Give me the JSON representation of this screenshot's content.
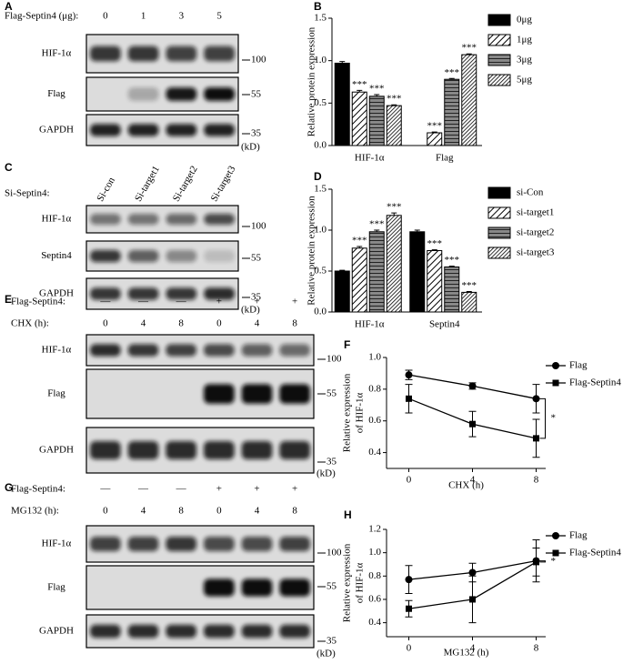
{
  "panels": [
    "A",
    "B",
    "C",
    "D",
    "E",
    "F",
    "G",
    "H"
  ],
  "blots": [
    {
      "headers": [
        {
          "label": "Flag-Septin4 (μg):",
          "lanes": [
            "0",
            "1",
            "3",
            "5"
          ]
        }
      ],
      "rows": [
        "HIF-1α",
        "Flag",
        "GAPDH"
      ],
      "markers": [
        "100",
        "55",
        "35"
      ],
      "unit": "(kD)"
    },
    {
      "headers": [
        {
          "label": "Si-Septin4:",
          "lanes": [
            "Si-con",
            "Si-target1",
            "Si-target2",
            "Si-target3"
          ]
        }
      ],
      "rows": [
        "HIF-1α",
        "Septin4",
        "GAPDH"
      ],
      "markers": [
        "100",
        "55",
        "35"
      ],
      "unit": "(kD)"
    },
    {
      "headers": [
        {
          "label": "Flag-Septin4:",
          "lanes": [
            "—",
            "—",
            "—",
            "+",
            "+",
            "+"
          ]
        },
        {
          "label": "CHX (h):",
          "lanes": [
            "0",
            "4",
            "8",
            "0",
            "4",
            "8"
          ]
        }
      ],
      "rows": [
        "HIF-1α",
        "Flag",
        "GAPDH"
      ],
      "markers": [
        "100",
        "55",
        "35"
      ],
      "unit": "(kD)"
    },
    {
      "headers": [
        {
          "label": "Flag-Septin4:",
          "lanes": [
            "—",
            "—",
            "—",
            "+",
            "+",
            "+"
          ]
        },
        {
          "label": "MG132 (h):",
          "lanes": [
            "0",
            "4",
            "8",
            "0",
            "4",
            "8"
          ]
        }
      ],
      "rows": [
        "HIF-1α",
        "Flag",
        "GAPDH"
      ],
      "markers": [
        "100",
        "55",
        "35"
      ],
      "unit": "(kD)"
    }
  ],
  "chart_data": [
    {
      "type": "bar",
      "y_label": "Relative protein expression",
      "categories": [
        "HIF-1α",
        "Flag"
      ],
      "series": [
        {
          "name": "0μg",
          "color": "#000000",
          "pattern": "solid",
          "values": [
            0.97,
            0
          ],
          "errors": [
            0.02,
            0
          ],
          "significance": [
            null,
            null
          ]
        },
        {
          "name": "1μg",
          "color": "#000000",
          "pattern": "diagonal",
          "values": [
            0.63,
            0.15
          ],
          "errors": [
            0.02,
            0.01
          ],
          "significance": [
            "***",
            "***"
          ]
        },
        {
          "name": "3μg",
          "color": "#000000",
          "pattern": "horizontal",
          "values": [
            0.58,
            0.78
          ],
          "errors": [
            0.02,
            0.01
          ],
          "significance": [
            "***",
            "***"
          ]
        },
        {
          "name": "5μg",
          "color": "#000000",
          "pattern": "dense-diagonal",
          "values": [
            0.47,
            1.07
          ],
          "errors": [
            0.01,
            0.01
          ],
          "significance": [
            "***",
            "***"
          ]
        }
      ],
      "ylim": [
        0,
        1.5
      ],
      "yticks": [
        {
          "value": 0,
          "label": "0.0"
        },
        0.5,
        {
          "value": 1,
          "label": "1.0"
        },
        1.5
      ],
      "legend": "right"
    },
    {
      "type": "bar",
      "y_label": "Relative protein expression",
      "categories": [
        "HIF-1α",
        "Septin4"
      ],
      "series": [
        {
          "name": "si-Con",
          "color": "#000000",
          "pattern": "solid",
          "values": [
            0.5,
            0.98
          ],
          "errors": [
            0.01,
            0.02
          ],
          "significance": [
            null,
            null
          ]
        },
        {
          "name": "si-target1",
          "color": "#000000",
          "pattern": "diagonal",
          "values": [
            0.78,
            0.75
          ],
          "errors": [
            0.02,
            0.01
          ],
          "significance": [
            "***",
            "***"
          ]
        },
        {
          "name": "si-target2",
          "color": "#000000",
          "pattern": "horizontal",
          "values": [
            0.98,
            0.55
          ],
          "errors": [
            0.02,
            0.01
          ],
          "significance": [
            "***",
            "***"
          ]
        },
        {
          "name": "si-target3",
          "color": "#000000",
          "pattern": "dense-diagonal",
          "values": [
            1.18,
            0.24
          ],
          "errors": [
            0.03,
            0.01
          ],
          "significance": [
            "***",
            "***"
          ]
        }
      ],
      "ylim": [
        0,
        1.5
      ],
      "yticks": [
        {
          "value": 0,
          "label": "0.0"
        },
        0.5,
        {
          "value": 1,
          "label": "1.0"
        },
        1.5
      ],
      "legend": "right"
    },
    {
      "type": "line",
      "x_label": "CHX (h)",
      "y_label": [
        "Relative expression",
        "of HIF-1α"
      ],
      "x": [
        0,
        4,
        8
      ],
      "series": [
        {
          "name": "Flag",
          "color": "#000000",
          "marker": "circle",
          "values": [
            0.89,
            0.82,
            0.74
          ],
          "errors": [
            0.03,
            0.02,
            0.09
          ]
        },
        {
          "name": "Flag-Septin4",
          "color": "#000000",
          "marker": "square",
          "values": [
            0.74,
            0.58,
            0.49
          ],
          "errors": [
            0.09,
            0.08,
            0.12
          ]
        }
      ],
      "xlim": [
        -1.4,
        8.6
      ],
      "xticks": [
        0,
        4,
        8
      ],
      "ylim": [
        0.3,
        1.0
      ],
      "yticks": [
        0.4,
        0.6,
        0.8,
        {
          "value": 1,
          "label": "1.0"
        }
      ],
      "legend": "upper right",
      "annotation": "*"
    },
    {
      "type": "line",
      "x_label": "MG132 (h)",
      "y_label": [
        "Relative expression",
        "of HIF-1α"
      ],
      "x": [
        0,
        4,
        8
      ],
      "series": [
        {
          "name": "Flag",
          "color": "#000000",
          "marker": "circle",
          "values": [
            0.77,
            0.83,
            0.93
          ],
          "errors": [
            0.12,
            0.08,
            0.18
          ]
        },
        {
          "name": "Flag-Septin4",
          "color": "#000000",
          "marker": "square",
          "values": [
            0.52,
            0.6,
            0.92
          ],
          "errors": [
            0.07,
            0.2,
            0.12
          ]
        }
      ],
      "xlim": [
        -1.4,
        8.6
      ],
      "xticks": [
        0,
        4,
        8
      ],
      "ylim": [
        0.28,
        1.2
      ],
      "yticks": [
        0.4,
        0.6,
        0.8,
        {
          "value": 1,
          "label": "1.0"
        },
        1.2
      ],
      "legend": "upper right",
      "annotation": "*"
    }
  ]
}
